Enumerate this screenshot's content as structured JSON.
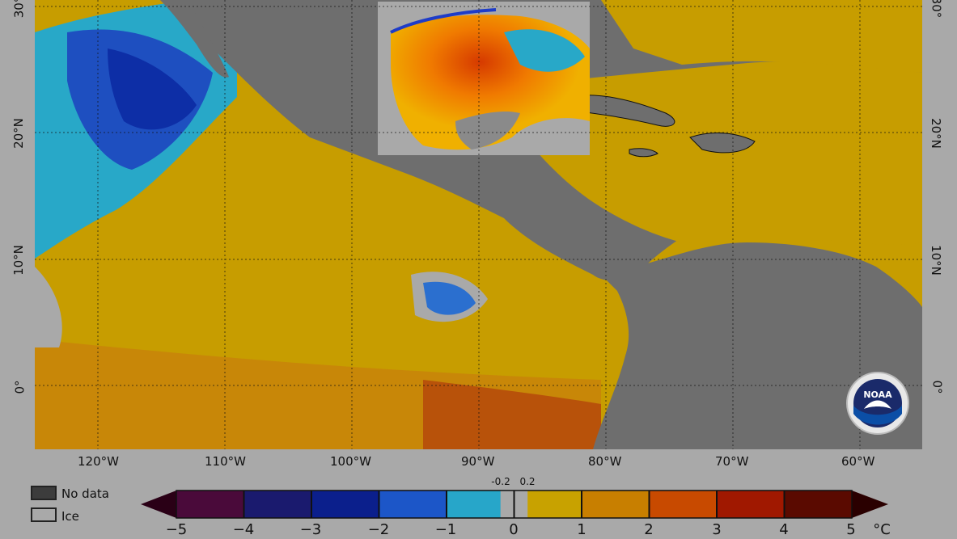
{
  "map": {
    "lon_labels": [
      "120°W",
      "110°W",
      "100°W",
      "90°W",
      "80°W",
      "70°W",
      "60°W"
    ],
    "lat_labels_left": [
      "30°",
      "20°N",
      "10°N",
      "0°"
    ],
    "lat_labels_right": [
      "30°",
      "20°N",
      "10°N",
      "0°"
    ],
    "colors": {
      "land": "#6e6e6e",
      "no_data": "#3c3c3c",
      "ice": "#a9a9a9",
      "background": "#a9a9a9"
    }
  },
  "legend": {
    "no_data_label": "No data",
    "ice_label": "Ice"
  },
  "colorbar": {
    "ticks": [
      "−5",
      "−4",
      "−3",
      "−2",
      "−1",
      "0",
      "1",
      "2",
      "3",
      "4",
      "5"
    ],
    "small_ticks": [
      "-0.2",
      "0.2"
    ],
    "unit": "°C",
    "colors": [
      "#2a0016",
      "#4a0a3a",
      "#1a1a6e",
      "#0b1f8c",
      "#1c56c8",
      "#27a6c9",
      "#a9a9a9",
      "#c8a200",
      "#c87f00",
      "#c84a00",
      "#a01800",
      "#5a0a00"
    ]
  },
  "logo": {
    "icon": "noaa-logo",
    "text": "NOAA"
  }
}
